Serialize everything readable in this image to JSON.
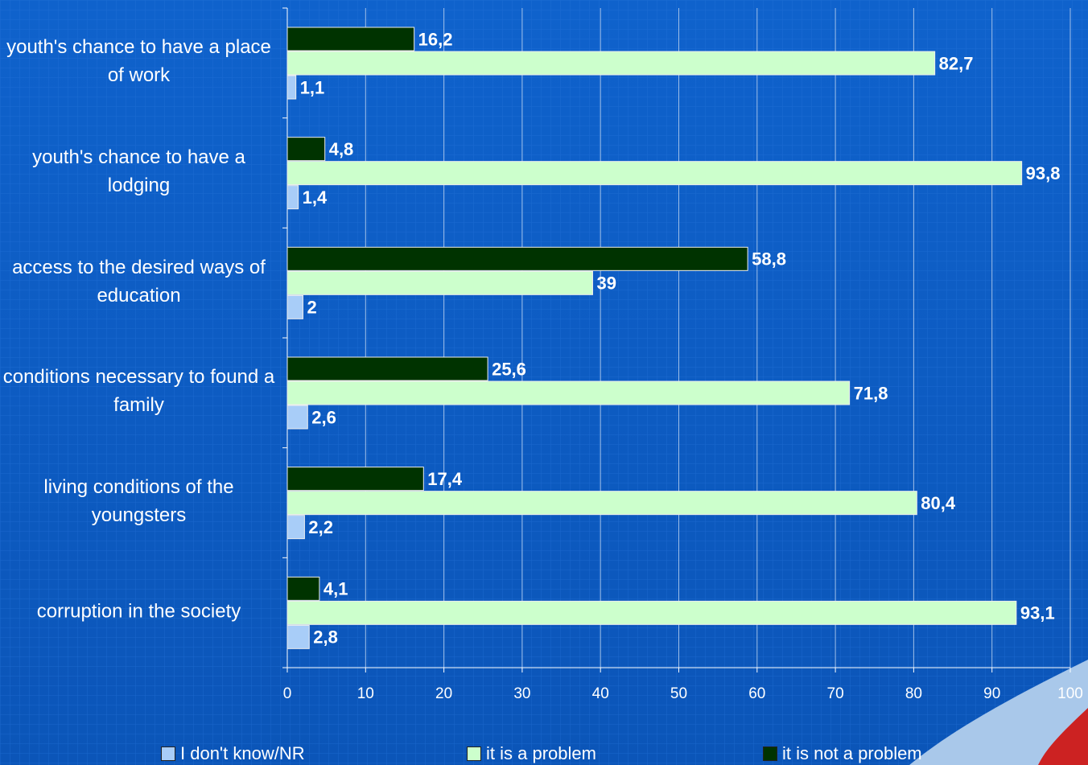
{
  "chart_data": {
    "type": "bar",
    "orientation": "horizontal",
    "categories": [
      "youth's chance to have a place of work",
      "youth's chance to have a lodging",
      "access to the desired ways of education",
      "conditions necessary to found a family",
      "living conditions of the youngsters",
      "corruption in the society"
    ],
    "series": [
      {
        "name": "I don't know/NR",
        "color": "#a8cdf8",
        "values": [
          1.1,
          1.4,
          2,
          2.6,
          2.2,
          2.8
        ],
        "value_labels": [
          "1,1",
          "1,4",
          "2",
          "2,6",
          "2,2",
          "2,8"
        ]
      },
      {
        "name": "it is a problem",
        "color": "#ccffcc",
        "values": [
          82.7,
          93.8,
          39,
          71.8,
          80.4,
          93.1
        ],
        "value_labels": [
          "82,7",
          "93,8",
          "39",
          "71,8",
          "80,4",
          "93,1"
        ]
      },
      {
        "name": "it is not a problem",
        "color": "#003300",
        "values": [
          16.2,
          4.8,
          58.8,
          25.6,
          17.4,
          4.1
        ],
        "value_labels": [
          "16,2",
          "4,8",
          "58,8",
          "25,6",
          "17,4",
          "4,1"
        ]
      }
    ],
    "xlim": [
      0,
      100
    ],
    "xticks": [
      0,
      10,
      20,
      30,
      40,
      50,
      60,
      70,
      80,
      90,
      100
    ],
    "grid": true,
    "legend": "bottom"
  }
}
